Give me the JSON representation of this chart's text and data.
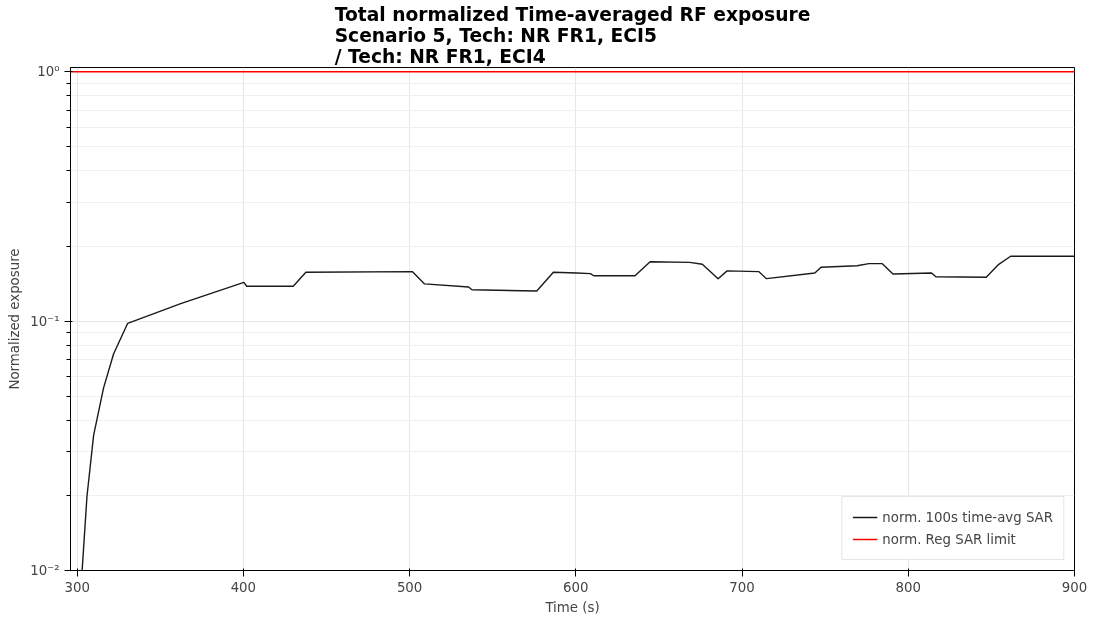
{
  "chart_data": {
    "type": "line",
    "title": "Total normalized Time-averaged RF exposure\nScenario 5, Tech: NR FR1, ECI5\n/ Tech: NR FR1, ECI4",
    "xlabel": "Time (s)",
    "ylabel": "Normalized exposure",
    "series": [
      {
        "name": "norm. 100s time-avg SAR",
        "color": "#1a1a1a",
        "x": [
          303,
          305.9,
          309.9,
          315.9,
          321.9,
          330.4,
          362.3,
          400.3,
          402,
          430,
          437.6,
          501.6,
          509,
          535.5,
          537.5,
          576.5,
          586.5,
          600.6,
          608.8,
          610.8,
          635.6,
          644.7,
          668.5,
          676.1,
          685.6,
          691,
          710,
          714.7,
          743.8,
          747.5,
          769.2,
          776.3,
          784.4,
          790.8,
          814,
          816.6,
          846.9,
          854,
          861.6,
          900
        ],
        "values": [
          0.01,
          0.0198,
          0.0348,
          0.054,
          0.0738,
          0.098,
          0.1175,
          0.143,
          0.138,
          0.138,
          0.157,
          0.158,
          0.141,
          0.137,
          0.1336,
          0.132,
          0.157,
          0.156,
          0.155,
          0.152,
          0.152,
          0.173,
          0.172,
          0.169,
          0.148,
          0.159,
          0.158,
          0.148,
          0.156,
          0.1645,
          0.1667,
          0.17,
          0.17,
          0.1545,
          0.156,
          0.1506,
          0.15,
          0.168,
          0.182,
          0.182
        ]
      }
    ],
    "ref_lines": [
      {
        "axis": "y",
        "value": 1.0,
        "label": "norm. Reg SAR limit",
        "color": "#ff0000"
      }
    ],
    "xlim": [
      296,
      900
    ],
    "xticks": [
      300,
      400,
      500,
      600,
      700,
      800,
      900
    ],
    "ylim": [
      0.01,
      1.04
    ],
    "yticks": [
      {
        "value": 0.01,
        "label": "10⁻²"
      },
      {
        "value": 0.1,
        "label": "10⁻¹"
      },
      {
        "value": 1,
        "label": "10⁰"
      }
    ],
    "log": "y",
    "grid": true,
    "legend": "bottom right",
    "marker": "none",
    "line_style": "solid"
  }
}
